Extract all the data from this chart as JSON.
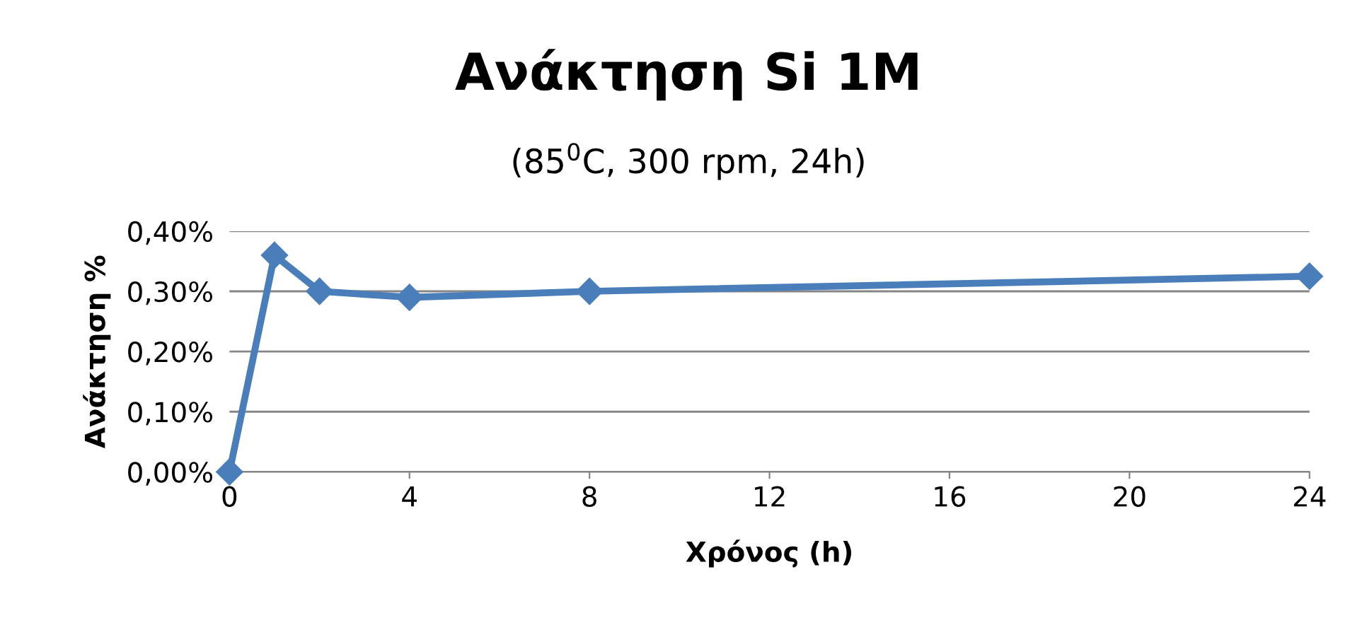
{
  "chart_data": {
    "type": "line",
    "title": "Ανάκτηση Si 1M",
    "subtitle": "(85$^{0}$C, 300 rpm, 24h)",
    "xlabel": "Χρόνος (h)",
    "ylabel": "Ανάκτηση %",
    "x": [
      0,
      1,
      2,
      4,
      8,
      24
    ],
    "series": [
      {
        "color": "#4a7ebb",
        "values": [
          0,
          0.36,
          0.3,
          0.29,
          0.3,
          0.325
        ]
      }
    ],
    "xlim": [
      0,
      24
    ],
    "xticks": [
      0,
      4,
      8,
      12,
      16,
      20,
      24
    ],
    "ylim": [
      0,
      0.4
    ],
    "yticks": [
      {
        "value": 0,
        "label": "0,00%"
      },
      {
        "value": 0.1,
        "label": "0,10%"
      },
      {
        "value": 0.2,
        "label": "0,20%"
      },
      {
        "value": 0.3,
        "label": "0,30%"
      },
      {
        "value": 0.4,
        "label": "0,40%"
      }
    ],
    "grid": "y",
    "marker": "diamond",
    "line_style": "solid"
  }
}
